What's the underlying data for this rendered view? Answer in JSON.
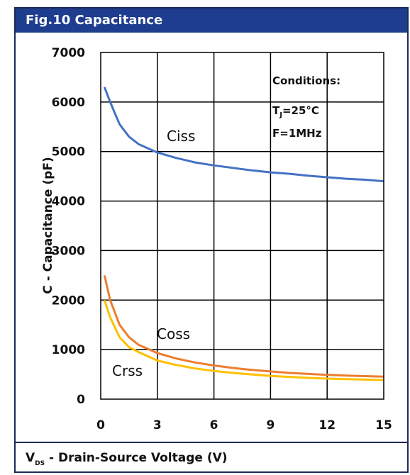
{
  "header": {
    "title": "Fig.10 Capacitance"
  },
  "chart_data": {
    "type": "line",
    "xlabel_prefix": "V",
    "xlabel_sub": "DS",
    "xlabel_rest": " - Drain-Source Voltage (V)",
    "ylabel": "C - Capacitance (pF)",
    "xlim": [
      0,
      15
    ],
    "ylim": [
      0,
      7000
    ],
    "xticks": [
      0,
      3,
      6,
      9,
      12,
      15
    ],
    "yticks": [
      0,
      1000,
      2000,
      3000,
      4000,
      5000,
      6000,
      7000
    ],
    "grid": true,
    "annotations": {
      "title": "Conditions:",
      "tj_prefix": "T",
      "tj_sub": "J",
      "tj_rest": "=25°C",
      "freq": "F=1MHz"
    },
    "series": [
      {
        "name": "Ciss",
        "color": "#4472c4",
        "x": [
          0.2,
          0.5,
          1,
          1.5,
          2,
          3,
          4,
          5,
          6,
          7,
          8,
          9,
          10,
          11,
          12,
          13,
          14,
          15
        ],
        "y": [
          6300,
          6000,
          5550,
          5300,
          5150,
          4980,
          4870,
          4780,
          4720,
          4670,
          4620,
          4580,
          4550,
          4510,
          4480,
          4450,
          4430,
          4400
        ]
      },
      {
        "name": "Coss",
        "color": "#ed7d31",
        "x": [
          0.2,
          0.5,
          1,
          1.5,
          2,
          3,
          4,
          5,
          6,
          7,
          8,
          9,
          10,
          11,
          12,
          13,
          14,
          15
        ],
        "y": [
          2500,
          2000,
          1500,
          1250,
          1100,
          930,
          820,
          740,
          680,
          630,
          590,
          560,
          530,
          510,
          490,
          475,
          465,
          455
        ]
      },
      {
        "name": "Crss",
        "color": "#ffc000",
        "x": [
          0.2,
          0.5,
          1,
          1.5,
          2,
          3,
          4,
          5,
          6,
          7,
          8,
          9,
          10,
          11,
          12,
          13,
          14,
          15
        ],
        "y": [
          2000,
          1650,
          1250,
          1050,
          950,
          780,
          690,
          620,
          570,
          530,
          500,
          470,
          450,
          430,
          415,
          405,
          395,
          385
        ]
      }
    ]
  }
}
